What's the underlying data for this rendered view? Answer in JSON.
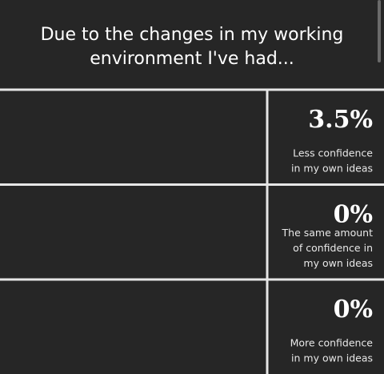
{
  "title": [
    "Due to the changes in my working",
    "environment I've had..."
  ],
  "rows": [
    {
      "value": "3.5%",
      "label": [
        "Less confidence",
        "in my own ideas"
      ]
    },
    {
      "value": "0%",
      "label": [
        "The same amount",
        "of confidence in",
        "my own ideas"
      ]
    },
    {
      "value": "0%",
      "label": [
        "More confidence",
        "in my own ideas"
      ]
    }
  ]
}
